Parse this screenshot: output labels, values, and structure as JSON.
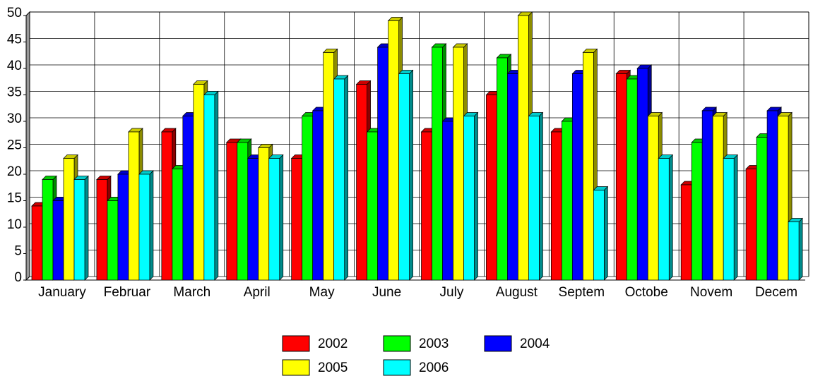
{
  "chart_data": {
    "type": "bar3d",
    "categories": [
      "January",
      "Februar",
      "March",
      "April",
      "May",
      "June",
      "July",
      "August",
      "Septem",
      "Octobe",
      "Novem",
      "Decem"
    ],
    "series": [
      {
        "name": "2002",
        "color": "#ff0000",
        "values": [
          14,
          19,
          28,
          26,
          23,
          37,
          28,
          35,
          28,
          39,
          18,
          21
        ]
      },
      {
        "name": "2003",
        "color": "#00ff00",
        "values": [
          19,
          15,
          21,
          26,
          31,
          28,
          44,
          42,
          30,
          38,
          26,
          27
        ]
      },
      {
        "name": "2004",
        "color": "#0000ff",
        "values": [
          15,
          20,
          31,
          23,
          32,
          44,
          30,
          39,
          39,
          40,
          32,
          32
        ]
      },
      {
        "name": "2005",
        "color": "#ffff00",
        "values": [
          23,
          28,
          37,
          25,
          43,
          49,
          44,
          50,
          43,
          31,
          31,
          31
        ]
      },
      {
        "name": "2006",
        "color": "#00ffff",
        "values": [
          19,
          20,
          35,
          23,
          38,
          39,
          31,
          31,
          17,
          23,
          23,
          11
        ]
      }
    ],
    "ylim": [
      0,
      50
    ],
    "yticks": [
      0,
      5,
      10,
      15,
      20,
      25,
      30,
      35,
      40,
      45,
      50
    ],
    "grid": true
  }
}
